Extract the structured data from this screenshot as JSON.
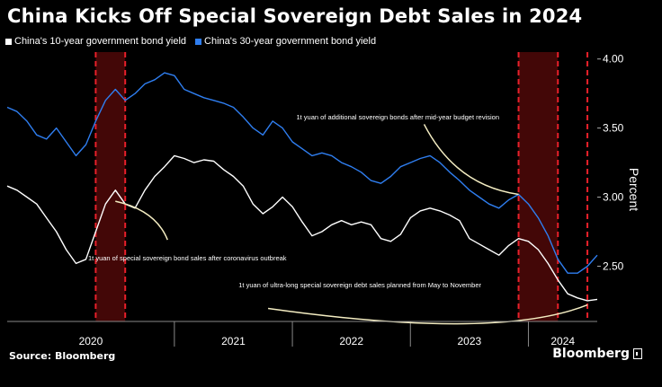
{
  "chart_data": {
    "type": "line",
    "title": "China Kicks Off Special Sovereign Debt Sales in 2024",
    "ylabel": "Percent",
    "ylim": [
      2.1,
      4.05
    ],
    "y_ticks": [
      "4.00",
      "3.50",
      "3.00",
      "2.50"
    ],
    "y_tick_values": [
      4.0,
      3.5,
      3.0,
      2.5
    ],
    "x_range": [
      "2019-06",
      "2024-06"
    ],
    "x_tick_labels": [
      "2020",
      "2021",
      "2022",
      "2023",
      "2024"
    ],
    "year_boundaries": [
      "2020-11",
      "2021-11",
      "2022-11",
      "2023-11"
    ],
    "grid": false,
    "legend_position": "top-left",
    "series": [
      {
        "name": "China's 10-year government bond yield",
        "color": "#ffffff",
        "points": [
          [
            "2019-06",
            3.08
          ],
          [
            "2019-07",
            3.05
          ],
          [
            "2019-08",
            3.0
          ],
          [
            "2019-09",
            2.95
          ],
          [
            "2019-10",
            2.85
          ],
          [
            "2019-11",
            2.75
          ],
          [
            "2019-12",
            2.62
          ],
          [
            "2020-01",
            2.52
          ],
          [
            "2020-02",
            2.55
          ],
          [
            "2020-03",
            2.75
          ],
          [
            "2020-04",
            2.95
          ],
          [
            "2020-05",
            3.05
          ],
          [
            "2020-06",
            2.95
          ],
          [
            "2020-07",
            2.92
          ],
          [
            "2020-08",
            3.05
          ],
          [
            "2020-09",
            3.15
          ],
          [
            "2020-10",
            3.22
          ],
          [
            "2020-11",
            3.3
          ],
          [
            "2020-12",
            3.28
          ],
          [
            "2021-01",
            3.25
          ],
          [
            "2021-02",
            3.27
          ],
          [
            "2021-03",
            3.26
          ],
          [
            "2021-04",
            3.2
          ],
          [
            "2021-05",
            3.15
          ],
          [
            "2021-06",
            3.08
          ],
          [
            "2021-07",
            2.95
          ],
          [
            "2021-08",
            2.88
          ],
          [
            "2021-09",
            2.93
          ],
          [
            "2021-10",
            3.0
          ],
          [
            "2021-11",
            2.93
          ],
          [
            "2021-12",
            2.82
          ],
          [
            "2022-01",
            2.72
          ],
          [
            "2022-02",
            2.75
          ],
          [
            "2022-03",
            2.8
          ],
          [
            "2022-04",
            2.83
          ],
          [
            "2022-05",
            2.8
          ],
          [
            "2022-06",
            2.82
          ],
          [
            "2022-07",
            2.8
          ],
          [
            "2022-08",
            2.7
          ],
          [
            "2022-09",
            2.68
          ],
          [
            "2022-10",
            2.73
          ],
          [
            "2022-11",
            2.85
          ],
          [
            "2022-12",
            2.9
          ],
          [
            "2023-01",
            2.92
          ],
          [
            "2023-02",
            2.9
          ],
          [
            "2023-03",
            2.87
          ],
          [
            "2023-04",
            2.83
          ],
          [
            "2023-05",
            2.7
          ],
          [
            "2023-06",
            2.66
          ],
          [
            "2023-07",
            2.62
          ],
          [
            "2023-08",
            2.58
          ],
          [
            "2023-09",
            2.65
          ],
          [
            "2023-10",
            2.7
          ],
          [
            "2023-11",
            2.68
          ],
          [
            "2023-12",
            2.62
          ],
          [
            "2024-01",
            2.52
          ],
          [
            "2024-02",
            2.4
          ],
          [
            "2024-03",
            2.3
          ],
          [
            "2024-04",
            2.27
          ],
          [
            "2024-05",
            2.25
          ],
          [
            "2024-06",
            2.26
          ]
        ]
      },
      {
        "name": "China's 30-year government bond yield",
        "color": "#2f7ef0",
        "points": [
          [
            "2019-06",
            3.65
          ],
          [
            "2019-07",
            3.62
          ],
          [
            "2019-08",
            3.55
          ],
          [
            "2019-09",
            3.45
          ],
          [
            "2019-10",
            3.42
          ],
          [
            "2019-11",
            3.5
          ],
          [
            "2019-12",
            3.4
          ],
          [
            "2020-01",
            3.3
          ],
          [
            "2020-02",
            3.38
          ],
          [
            "2020-03",
            3.55
          ],
          [
            "2020-04",
            3.7
          ],
          [
            "2020-05",
            3.78
          ],
          [
            "2020-06",
            3.7
          ],
          [
            "2020-07",
            3.75
          ],
          [
            "2020-08",
            3.82
          ],
          [
            "2020-09",
            3.85
          ],
          [
            "2020-10",
            3.9
          ],
          [
            "2020-11",
            3.88
          ],
          [
            "2020-12",
            3.78
          ],
          [
            "2021-01",
            3.75
          ],
          [
            "2021-02",
            3.72
          ],
          [
            "2021-03",
            3.7
          ],
          [
            "2021-04",
            3.68
          ],
          [
            "2021-05",
            3.65
          ],
          [
            "2021-06",
            3.58
          ],
          [
            "2021-07",
            3.5
          ],
          [
            "2021-08",
            3.45
          ],
          [
            "2021-09",
            3.55
          ],
          [
            "2021-10",
            3.5
          ],
          [
            "2021-11",
            3.4
          ],
          [
            "2021-12",
            3.35
          ],
          [
            "2022-01",
            3.3
          ],
          [
            "2022-02",
            3.32
          ],
          [
            "2022-03",
            3.3
          ],
          [
            "2022-04",
            3.25
          ],
          [
            "2022-05",
            3.22
          ],
          [
            "2022-06",
            3.18
          ],
          [
            "2022-07",
            3.12
          ],
          [
            "2022-08",
            3.1
          ],
          [
            "2022-09",
            3.15
          ],
          [
            "2022-10",
            3.22
          ],
          [
            "2022-11",
            3.25
          ],
          [
            "2022-12",
            3.28
          ],
          [
            "2023-01",
            3.3
          ],
          [
            "2023-02",
            3.25
          ],
          [
            "2023-03",
            3.18
          ],
          [
            "2023-04",
            3.12
          ],
          [
            "2023-05",
            3.05
          ],
          [
            "2023-06",
            3.0
          ],
          [
            "2023-07",
            2.95
          ],
          [
            "2023-08",
            2.92
          ],
          [
            "2023-09",
            2.98
          ],
          [
            "2023-10",
            3.02
          ],
          [
            "2023-11",
            2.95
          ],
          [
            "2023-12",
            2.85
          ],
          [
            "2024-01",
            2.72
          ],
          [
            "2024-02",
            2.55
          ],
          [
            "2024-03",
            2.45
          ],
          [
            "2024-04",
            2.45
          ],
          [
            "2024-05",
            2.5
          ],
          [
            "2024-06",
            2.58
          ]
        ]
      }
    ],
    "shaded_periods": [
      {
        "start": "2020-03",
        "end": "2020-06"
      },
      {
        "start": "2023-10",
        "end": "2024-02"
      }
    ],
    "marker_lines": [
      "2024-05"
    ],
    "annotations": [
      {
        "text": "1t yuan of special sovereign bond sales after coronavirus outbreak",
        "x": "2020-05",
        "y": 2.97
      },
      {
        "text": "1t yuan of additional sovereign bonds after mid-year budget revision",
        "x": "2023-10",
        "y": 3.02
      },
      {
        "text": "1t yuan of ultra-long special sovereign debt sales planned from May to November",
        "x": "2024-05",
        "y": 2.22
      }
    ]
  },
  "source": "Source: Bloomberg",
  "brand": "Bloomberg"
}
